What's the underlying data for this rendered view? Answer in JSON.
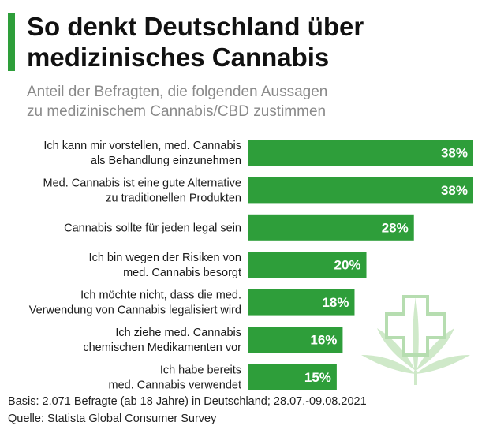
{
  "header": {
    "title_line1": "So denkt Deutschland über",
    "title_line2": "medizinisches Cannabis",
    "subtitle_line1": "Anteil der Befragten, die folgenden Aussagen",
    "subtitle_line2": "zu medizinischem Cannabis/CBD zustimmen"
  },
  "colors": {
    "bar": "#2e9e3a",
    "accent": "#2e9e3a",
    "value_text": "#ffffff",
    "label_text": "#1a1a1a",
    "subtitle": "#8a8a8a",
    "watermark": "#cfe9c9"
  },
  "chart_data": {
    "type": "bar",
    "orientation": "horizontal",
    "categories": [
      [
        "Ich kann mir vorstellen, med. Cannabis",
        "als Behandlung einzunehmen"
      ],
      [
        "Med. Cannabis ist eine gute Alternative",
        "zu traditionellen Produkten"
      ],
      [
        "Cannabis sollte für jeden legal sein"
      ],
      [
        "Ich bin wegen der Risiken von",
        "med. Cannabis besorgt"
      ],
      [
        "Ich möchte nicht, dass die med.",
        "Verwendung von Cannabis legalisiert wird"
      ],
      [
        "Ich ziehe med. Cannabis",
        "chemischen Medikamenten vor"
      ],
      [
        "Ich habe bereits",
        "med. Cannabis verwendet"
      ]
    ],
    "values": [
      38,
      38,
      28,
      20,
      18,
      16,
      15
    ],
    "value_labels": [
      "38%",
      "38%",
      "28%",
      "20%",
      "18%",
      "16%",
      "15%"
    ],
    "unit": "%",
    "xlim": [
      0,
      38
    ],
    "grid": false,
    "legend": "none"
  },
  "footer": {
    "basis": "Basis: 2.071 Befragte (ab 18 Jahre) in Deutschland; 28.07.-09.08.2021",
    "source": "Quelle: Statista Global Consumer Survey"
  }
}
